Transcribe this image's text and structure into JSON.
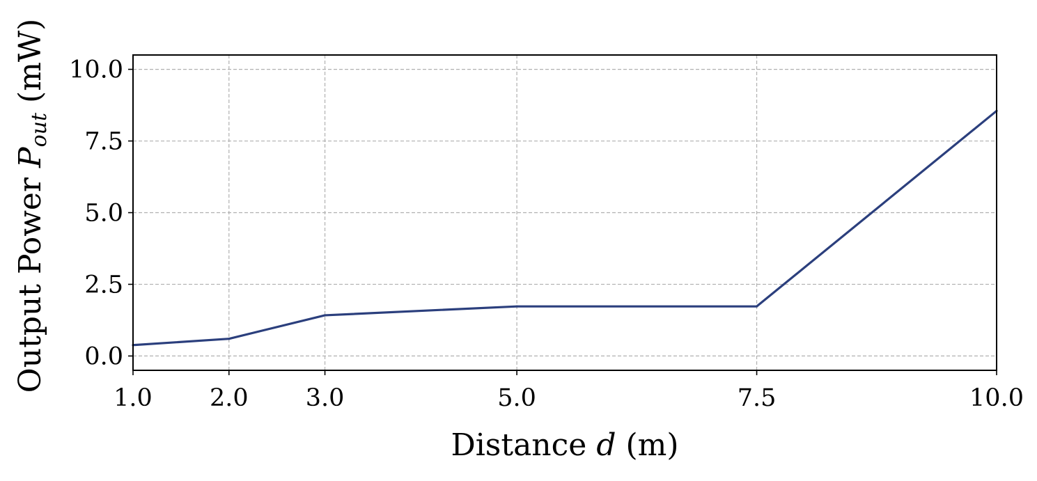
{
  "chart_data": {
    "type": "line",
    "xlabel_parts": {
      "prefix": "Distance ",
      "var": "d",
      "suffix": " (m)"
    },
    "ylabel_parts": {
      "prefix": "Output Power ",
      "var": "P",
      "sub": "out",
      "suffix": " (mW)"
    },
    "x_categories": [
      "1.0",
      "2.0",
      "3.0",
      "5.0",
      "7.5",
      "10.0"
    ],
    "x": [
      1.0,
      2.0,
      3.0,
      5.0,
      7.5,
      10.0
    ],
    "x_ticks": [
      "1.0",
      "2.0",
      "3.0",
      "5.0",
      "7.5",
      "10.0"
    ],
    "xlim": [
      1.0,
      10.0
    ],
    "y_ticks": [
      "0.0",
      "2.5",
      "5.0",
      "7.5",
      "10.0"
    ],
    "y_tick_values": [
      0.0,
      2.5,
      5.0,
      7.5,
      10.0
    ],
    "ylim": [
      -0.5,
      10.5
    ],
    "grid": true,
    "series": [
      {
        "values": [
          0.38,
          0.6,
          1.42,
          1.73,
          1.73,
          8.55
        ],
        "color": "#2b3f7d"
      }
    ]
  }
}
